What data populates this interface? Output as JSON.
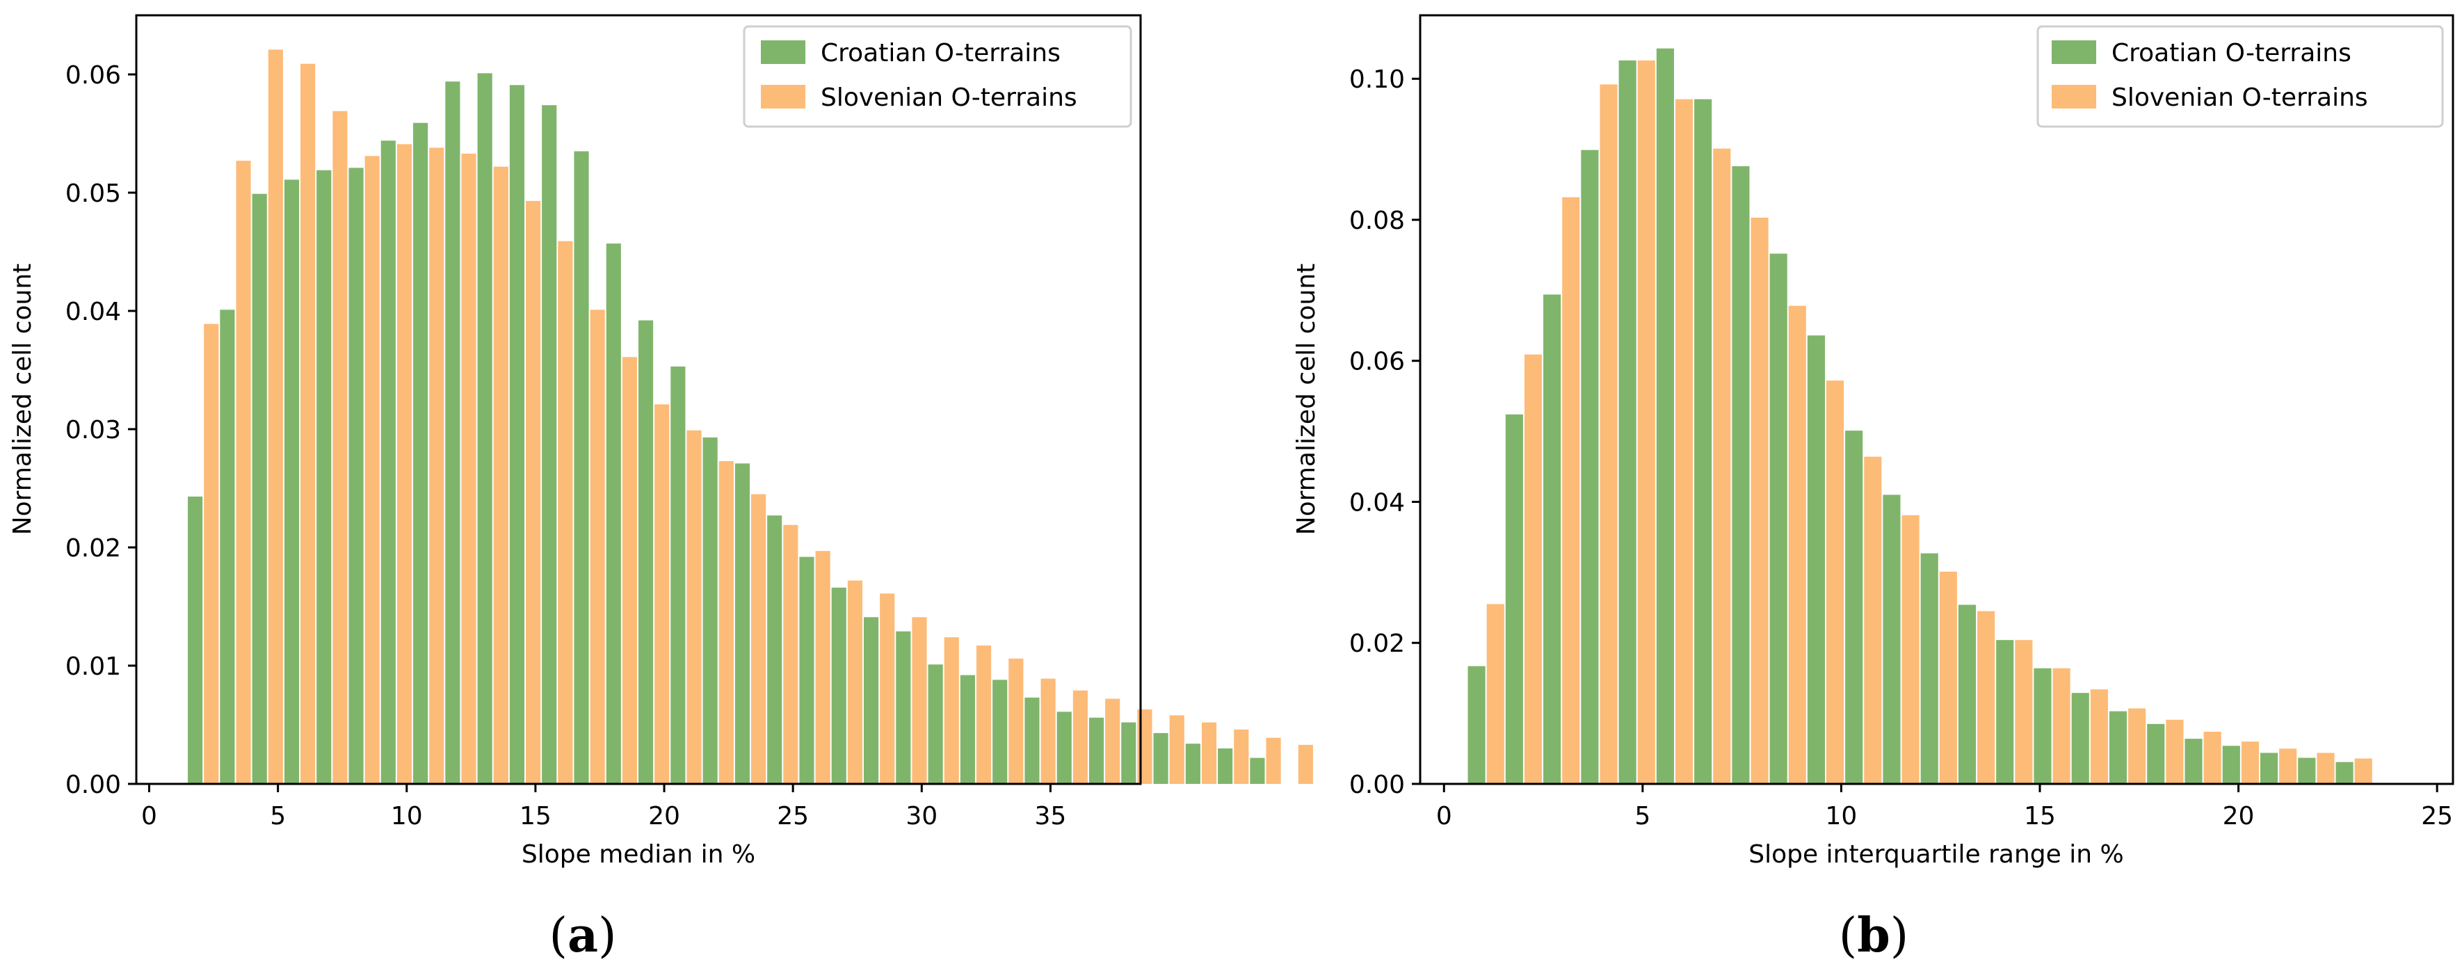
{
  "colors": {
    "series_a": "#7fb56b",
    "series_b": "#fdbb78",
    "axis": "#000000"
  },
  "chart_data": [
    {
      "type": "bar",
      "caption_letter": "a",
      "xlabel": "Slope median in %",
      "ylabel": "Normalized cell count",
      "xlim": [
        -0.5,
        38.5
      ],
      "ylim": [
        0,
        0.065
      ],
      "xticks": [
        0,
        5,
        10,
        15,
        20,
        25,
        30,
        35
      ],
      "yticks": [
        0.0,
        0.01,
        0.02,
        0.03,
        0.04,
        0.05,
        0.06
      ],
      "ytick_labels": [
        "0.00",
        "0.01",
        "0.02",
        "0.03",
        "0.04",
        "0.05",
        "0.06"
      ],
      "bin_start": 1.5,
      "bin_width": 1.25,
      "legend": {
        "position": "upper-right",
        "entries": [
          "Croatian O-terrains",
          "Slovenian O-terrains"
        ]
      },
      "series": [
        {
          "name": "Croatian O-terrains",
          "values": [
            0.0243,
            0.0401,
            0.0499,
            0.0511,
            0.0519,
            0.0521,
            0.0544,
            0.0559,
            0.0594,
            0.0601,
            0.0591,
            0.0574,
            0.0535,
            0.0457,
            0.0392,
            0.0353,
            0.0293,
            0.0271,
            0.0227,
            0.0192,
            0.0166,
            0.0141,
            0.0129,
            0.0101,
            0.0092,
            0.0088,
            0.0073,
            0.0061,
            0.0056,
            0.0052,
            0.0043,
            0.0034,
            0.003,
            0.0022
          ]
        },
        {
          "name": "Slovenian O-terrains",
          "values": [
            0.0389,
            0.0527,
            0.0621,
            0.0609,
            0.0569,
            0.0531,
            0.0541,
            0.0538,
            0.0533,
            0.0522,
            0.0493,
            0.0459,
            0.0401,
            0.0361,
            0.0321,
            0.0299,
            0.0273,
            0.0245,
            0.0219,
            0.0197,
            0.0172,
            0.0161,
            0.0141,
            0.0124,
            0.0117,
            0.0106,
            0.0089,
            0.0079,
            0.0072,
            0.0063,
            0.0058,
            0.0052,
            0.0046,
            0.0039,
            0.0033
          ]
        }
      ]
    },
    {
      "type": "bar",
      "caption_letter": "b",
      "xlabel": "Slope interquartile range in %",
      "ylabel": "Normalized cell count",
      "xlim": [
        -0.6,
        25.4
      ],
      "ylim": [
        0,
        0.109
      ],
      "xticks": [
        0,
        5,
        10,
        15,
        20,
        25
      ],
      "yticks": [
        0.0,
        0.02,
        0.04,
        0.06,
        0.08,
        0.1
      ],
      "ytick_labels": [
        "0.00",
        "0.02",
        "0.04",
        "0.06",
        "0.08",
        "0.10"
      ],
      "bin_start": 0.6,
      "bin_width": 0.95,
      "legend": {
        "position": "upper-right",
        "entries": [
          "Croatian O-terrains",
          "Slovenian O-terrains"
        ]
      },
      "series": [
        {
          "name": "Croatian O-terrains",
          "values": [
            0.0167,
            0.0524,
            0.0694,
            0.0899,
            0.1026,
            0.1043,
            0.0971,
            0.0876,
            0.0752,
            0.0636,
            0.0501,
            0.041,
            0.0327,
            0.0254,
            0.0204,
            0.0164,
            0.0129,
            0.0103,
            0.0085,
            0.0064,
            0.0054,
            0.0044,
            0.0037,
            0.0031
          ]
        },
        {
          "name": "Slovenian O-terrains",
          "values": [
            0.0255,
            0.0609,
            0.0832,
            0.0992,
            0.1026,
            0.0971,
            0.0901,
            0.0803,
            0.0678,
            0.0572,
            0.0464,
            0.0381,
            0.0301,
            0.0245,
            0.0204,
            0.0164,
            0.0134,
            0.0107,
            0.0091,
            0.0074,
            0.006,
            0.005,
            0.0044,
            0.0036
          ]
        }
      ]
    }
  ]
}
